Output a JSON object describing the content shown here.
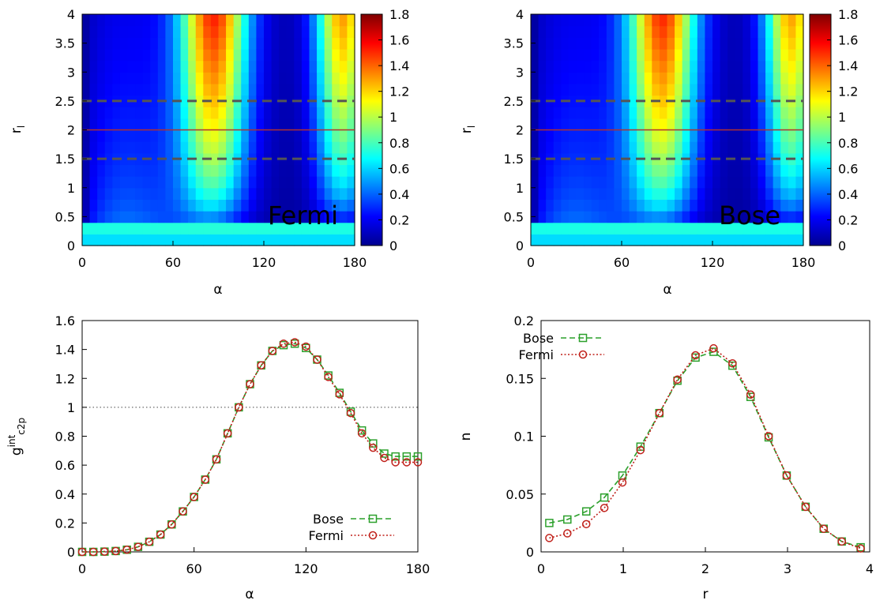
{
  "chart_data": [
    {
      "type": "heatmap",
      "xlabel": "α",
      "ylabel_main": "r",
      "ylabel_sub": "l",
      "annotation": "Fermi",
      "x_range": [
        0,
        180
      ],
      "y_range": [
        0,
        4
      ],
      "x_ticks": [
        "0",
        "60",
        "120",
        "180"
      ],
      "y_ticks": [
        "0",
        "0.5",
        "1",
        "1.5",
        "2",
        "2.5",
        "3",
        "3.5",
        "4"
      ],
      "colorbar_range": [
        0,
        1.8
      ],
      "colorbar_ticks": [
        "0",
        "0.2",
        "0.4",
        "0.6",
        "0.8",
        "1",
        "1.2",
        "1.4",
        "1.6",
        "1.8"
      ],
      "hlines": [
        {
          "y": 2.0,
          "style": "solid",
          "color": "#b03030"
        },
        {
          "y": 1.5,
          "style": "dashed",
          "color": "#555555"
        },
        {
          "y": 2.5,
          "style": "dashed",
          "color": "#555555"
        }
      ]
    },
    {
      "type": "heatmap",
      "xlabel": "α",
      "ylabel_main": "r",
      "ylabel_sub": "l",
      "annotation": "Bose",
      "x_range": [
        0,
        180
      ],
      "y_range": [
        0,
        4
      ],
      "x_ticks": [
        "0",
        "60",
        "120",
        "180"
      ],
      "y_ticks": [
        "0",
        "0.5",
        "1",
        "1.5",
        "2",
        "2.5",
        "3",
        "3.5",
        "4"
      ],
      "colorbar_range": [
        0,
        1.8
      ],
      "colorbar_ticks": [
        "0",
        "0.2",
        "0.4",
        "0.6",
        "0.8",
        "1",
        "1.2",
        "1.4",
        "1.6",
        "1.8"
      ],
      "hlines": [
        {
          "y": 2.0,
          "style": "solid",
          "color": "#b03030"
        },
        {
          "y": 1.5,
          "style": "dashed",
          "color": "#555555"
        },
        {
          "y": 2.5,
          "style": "dashed",
          "color": "#555555"
        }
      ]
    },
    {
      "type": "line",
      "xlabel": "α",
      "ylabel_main": "g",
      "ylabel_sup": "int",
      "ylabel_sub": "c2p",
      "xlim": [
        0,
        180
      ],
      "ylim": [
        0,
        1.6
      ],
      "x_ticks": [
        "0",
        "60",
        "120",
        "180"
      ],
      "y_ticks": [
        "0",
        "0.2",
        "0.4",
        "0.6",
        "0.8",
        "1",
        "1.2",
        "1.4",
        "1.6"
      ],
      "reference_line_y": 1,
      "legend_position": "bottom-right",
      "series": [
        {
          "name": "Bose",
          "color": "#2ca02c",
          "marker": "square",
          "x": [
            0,
            6,
            12,
            18,
            24,
            30,
            36,
            42,
            48,
            54,
            60,
            66,
            72,
            78,
            84,
            90,
            96,
            102,
            108,
            114,
            120,
            126,
            132,
            138,
            144,
            150,
            156,
            162,
            168,
            174,
            180
          ],
          "y": [
            0,
            0,
            0.002,
            0.006,
            0.015,
            0.035,
            0.07,
            0.12,
            0.19,
            0.28,
            0.38,
            0.5,
            0.64,
            0.82,
            1.0,
            1.16,
            1.29,
            1.39,
            1.43,
            1.44,
            1.41,
            1.33,
            1.22,
            1.1,
            0.97,
            0.84,
            0.75,
            0.68,
            0.66,
            0.66,
            0.66
          ]
        },
        {
          "name": "Fermi",
          "color": "#c0201a",
          "marker": "circle",
          "x": [
            0,
            6,
            12,
            18,
            24,
            30,
            36,
            42,
            48,
            54,
            60,
            66,
            72,
            78,
            84,
            90,
            96,
            102,
            108,
            114,
            120,
            126,
            132,
            138,
            144,
            150,
            156,
            162,
            168,
            174,
            180
          ],
          "y": [
            0,
            0,
            0.002,
            0.006,
            0.015,
            0.035,
            0.07,
            0.12,
            0.19,
            0.28,
            0.38,
            0.5,
            0.64,
            0.82,
            1.0,
            1.16,
            1.29,
            1.39,
            1.44,
            1.45,
            1.42,
            1.33,
            1.21,
            1.09,
            0.96,
            0.82,
            0.72,
            0.65,
            0.62,
            0.62,
            0.62
          ]
        }
      ]
    },
    {
      "type": "line",
      "xlabel": "r",
      "ylabel": "n",
      "xlim": [
        0,
        4
      ],
      "ylim": [
        0,
        0.2
      ],
      "x_ticks": [
        "0",
        "1",
        "2",
        "3",
        "4"
      ],
      "y_ticks": [
        "0",
        "0.05",
        "0.1",
        "0.15",
        "0.2"
      ],
      "legend_position": "top-left",
      "series": [
        {
          "name": "Bose",
          "color": "#2ca02c",
          "marker": "square",
          "x": [
            0.1,
            0.32,
            0.55,
            0.77,
            0.99,
            1.21,
            1.44,
            1.66,
            1.88,
            2.1,
            2.33,
            2.55,
            2.77,
            2.99,
            3.22,
            3.44,
            3.66,
            3.89
          ],
          "y": [
            0.025,
            0.028,
            0.035,
            0.047,
            0.066,
            0.091,
            0.12,
            0.148,
            0.168,
            0.173,
            0.161,
            0.134,
            0.099,
            0.066,
            0.039,
            0.02,
            0.009,
            0.004
          ]
        },
        {
          "name": "Fermi",
          "color": "#c0201a",
          "marker": "circle",
          "x": [
            0.1,
            0.32,
            0.55,
            0.77,
            0.99,
            1.21,
            1.44,
            1.66,
            1.88,
            2.1,
            2.33,
            2.55,
            2.77,
            2.99,
            3.22,
            3.44,
            3.66,
            3.89
          ],
          "y": [
            0.012,
            0.016,
            0.024,
            0.038,
            0.06,
            0.088,
            0.12,
            0.149,
            0.17,
            0.176,
            0.163,
            0.136,
            0.1,
            0.066,
            0.039,
            0.02,
            0.009,
            0.003
          ]
        }
      ]
    }
  ]
}
